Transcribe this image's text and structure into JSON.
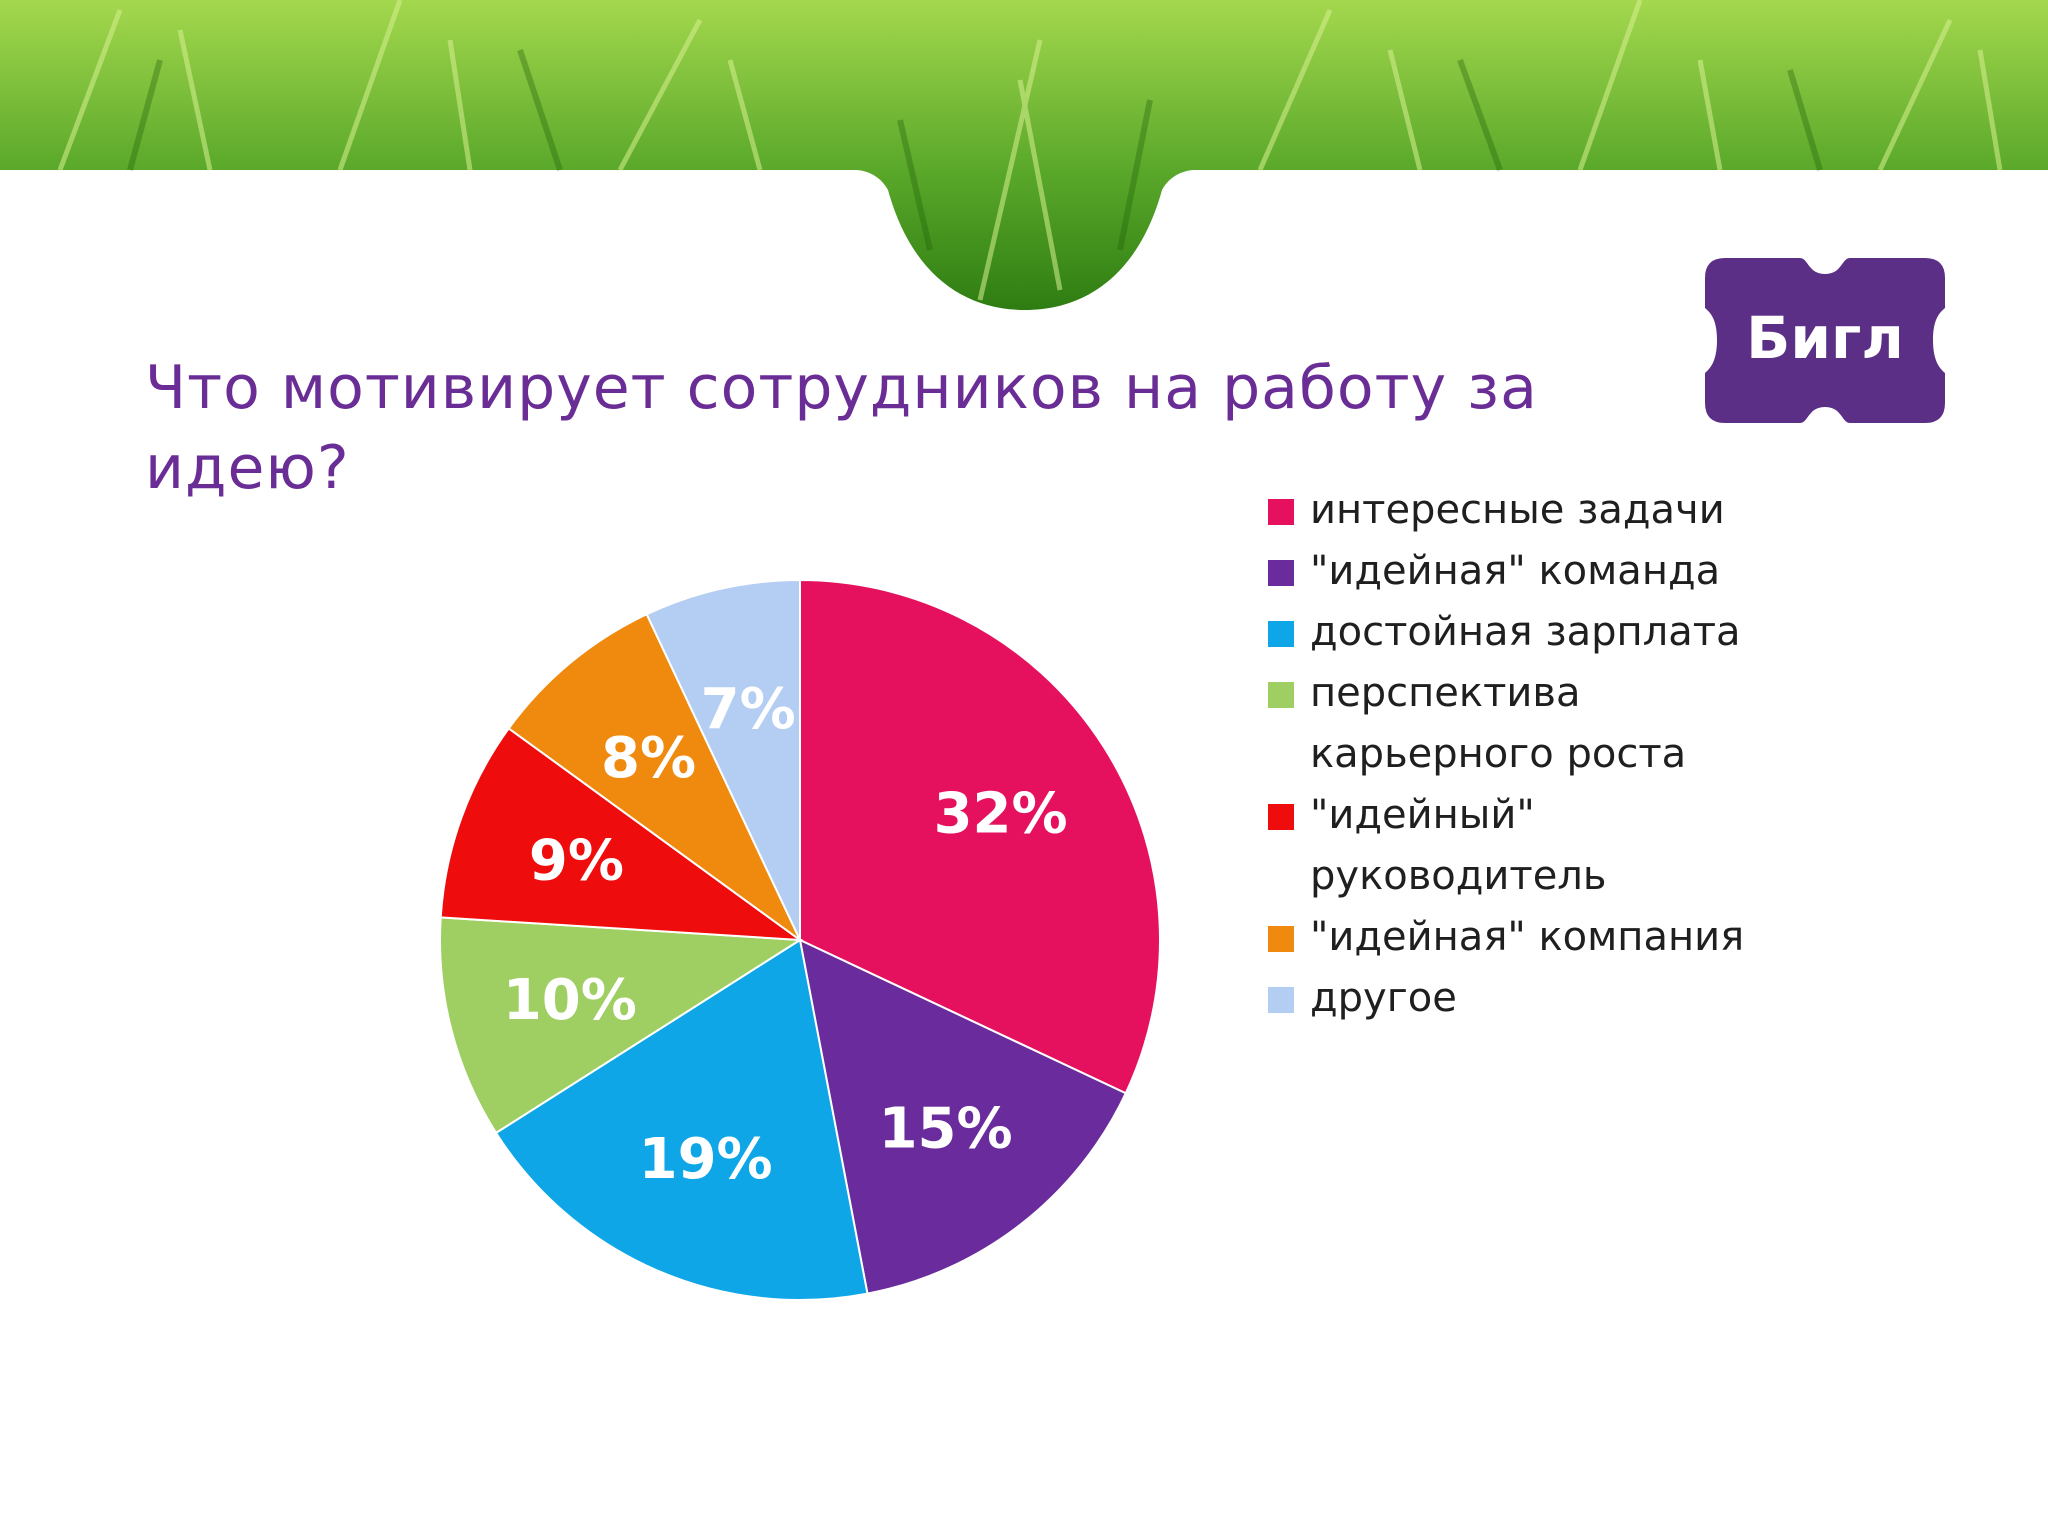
{
  "slide": {
    "title": "Что мотивирует сотрудников на работу за идею?",
    "logo_text": "Бигл"
  },
  "colors": {
    "title": "#6a2d96",
    "logo_bg": "#5b2f86",
    "grass_light": "#9fd24a",
    "grass_dark": "#2f7d12"
  },
  "chart_data": {
    "type": "pie",
    "categories": [
      "интересные задачи",
      "\"идейная\" команда",
      "достойная зарплата",
      "перспектива карьерного роста",
      "\"идейный\" руководитель",
      "\"идейная\" компания",
      "другое"
    ],
    "values": [
      32,
      15,
      19,
      10,
      9,
      8,
      7
    ],
    "data_labels": [
      "32%",
      "15%",
      "19%",
      "10%",
      "9%",
      "8%",
      "7%"
    ],
    "colors": [
      "#e5115f",
      "#6a2b9c",
      "#0ea6e6",
      "#9fcf63",
      "#ee0c0c",
      "#ef8a0e",
      "#b4cdf2"
    ],
    "legend_position": "right"
  }
}
